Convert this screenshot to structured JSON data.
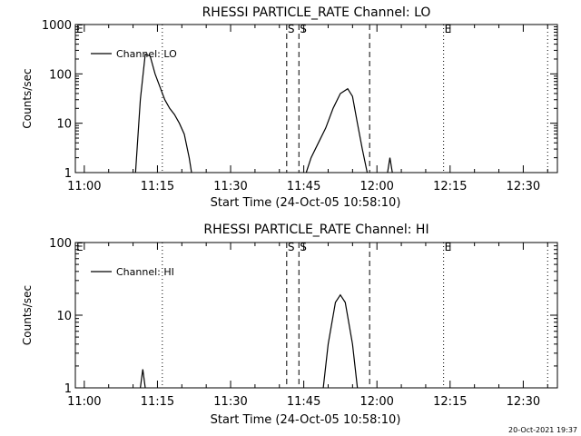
{
  "footer": {
    "timestamp": "20-Oct-2021 19:37"
  },
  "chart_data": [
    {
      "type": "line",
      "title": "RHESSI PARTICLE_RATE Channel: LO",
      "xlabel": "Start Time (24-Oct-05 10:58:10)",
      "ylabel": "Counts/sec",
      "yscale": "log",
      "ylim": [
        1,
        1000
      ],
      "xlim": [
        "10:58:10",
        "12:37:00"
      ],
      "x_ticks": [
        "11:00",
        "11:15",
        "11:30",
        "11:45",
        "12:00",
        "12:15",
        "12:30"
      ],
      "y_ticks": [
        "1",
        "10",
        "100",
        "1000"
      ],
      "legend": {
        "label": "Channel: LO",
        "position": "top-left"
      },
      "markers": [
        {
          "time": "11:41:30",
          "label": "S",
          "style": "dashed"
        },
        {
          "time": "11:44:00",
          "label": "S",
          "style": "dashed"
        },
        {
          "time": "11:58:30",
          "label": "",
          "style": "dashed"
        },
        {
          "time": "11:16:00",
          "label": "",
          "style": "dotted"
        },
        {
          "time": "12:13:40",
          "label": "E",
          "style": "dotted"
        },
        {
          "time": "12:35:00",
          "label": "",
          "style": "dotted"
        }
      ],
      "series": [
        {
          "name": "Channel: LO",
          "points": [
            [
              "11:10:30",
              1
            ],
            [
              "11:11:30",
              30
            ],
            [
              "11:12:30",
              250
            ],
            [
              "11:13:30",
              230
            ],
            [
              "11:14:30",
              100
            ],
            [
              "11:15:30",
              55
            ],
            [
              "11:16:30",
              30
            ],
            [
              "11:17:30",
              20
            ],
            [
              "11:18:30",
              15
            ],
            [
              "11:19:30",
              10
            ],
            [
              "11:20:30",
              6
            ],
            [
              "11:21:30",
              2
            ],
            [
              "11:22:00",
              1
            ],
            null,
            [
              "11:45:30",
              1
            ],
            [
              "11:46:30",
              2
            ],
            [
              "11:48:00",
              4
            ],
            [
              "11:49:30",
              8
            ],
            [
              "11:51:00",
              20
            ],
            [
              "11:52:30",
              40
            ],
            [
              "11:54:00",
              50
            ],
            [
              "11:55:00",
              35
            ],
            [
              "11:56:00",
              10
            ],
            [
              "11:57:00",
              3
            ],
            [
              "11:58:00",
              1
            ],
            null,
            [
              "12:02:10",
              1
            ],
            [
              "12:02:40",
              2
            ],
            [
              "12:03:10",
              1
            ]
          ]
        }
      ]
    },
    {
      "type": "line",
      "title": "RHESSI PARTICLE_RATE Channel: HI",
      "xlabel": "Start Time (24-Oct-05 10:58:10)",
      "ylabel": "Counts/sec",
      "yscale": "log",
      "ylim": [
        1,
        100
      ],
      "xlim": [
        "10:58:10",
        "12:37:00"
      ],
      "x_ticks": [
        "11:00",
        "11:15",
        "11:30",
        "11:45",
        "12:00",
        "12:15",
        "12:30"
      ],
      "y_ticks": [
        "1",
        "10",
        "100"
      ],
      "legend": {
        "label": "Channel: HI",
        "position": "top-left"
      },
      "markers": [
        {
          "time": "11:41:30",
          "label": "S",
          "style": "dashed"
        },
        {
          "time": "11:44:00",
          "label": "S",
          "style": "dashed"
        },
        {
          "time": "11:58:30",
          "label": "",
          "style": "dashed"
        },
        {
          "time": "11:16:00",
          "label": "",
          "style": "dotted"
        },
        {
          "time": "12:13:40",
          "label": "E",
          "style": "dotted"
        },
        {
          "time": "12:35:00",
          "label": "",
          "style": "dotted"
        }
      ],
      "series": [
        {
          "name": "Channel: HI",
          "points": [
            [
              "11:11:30",
              1
            ],
            [
              "11:12:00",
              1.8
            ],
            [
              "11:12:30",
              1
            ],
            null,
            [
              "11:49:00",
              1
            ],
            [
              "11:50:00",
              4
            ],
            [
              "11:51:30",
              15
            ],
            [
              "11:52:30",
              19
            ],
            [
              "11:53:30",
              15
            ],
            [
              "11:55:00",
              4
            ],
            [
              "11:56:00",
              1
            ]
          ]
        }
      ]
    }
  ]
}
